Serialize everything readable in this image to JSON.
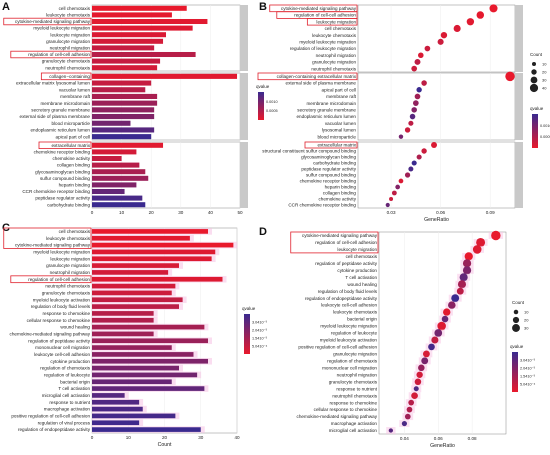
{
  "panel_labels": [
    "A",
    "B",
    "C",
    "D"
  ],
  "colors": {
    "highlight_box": "#e0202c",
    "facet_strip": "#c9c9c9",
    "panel_bg": "#ffffff",
    "grid": "#eeeeee",
    "qvalue_low": "#e8192c",
    "qvalue_high": "#3a2a8f",
    "halo": "#f7c6e6"
  },
  "chart_data": [
    {
      "id": "A",
      "type": "bar",
      "orientation": "horizontal",
      "xlabel": "",
      "ylabel": "",
      "xticks": [
        0,
        10,
        20,
        30,
        40,
        50
      ],
      "xlim": [
        0,
        50
      ],
      "legend": {
        "title": "qvalue",
        "ticks": [
          "0.0010",
          "0.0005"
        ]
      },
      "facets": [
        {
          "name": "BP",
          "categories": [
            "cell chemotaxis",
            "leukocyte chemotaxis",
            "cytokine-mediated signaling pathway",
            "myeloid leukocyte migration",
            "leukocyte migration",
            "granulocyte migration",
            "neutrophil migration",
            "regulation of cell-cell adhesion",
            "granulocyte chemotaxis",
            "neutrophil chemotaxis"
          ],
          "values": [
            32,
            27,
            39,
            34,
            25,
            24,
            21,
            35,
            23,
            22
          ],
          "qvalue": [
            5e-05,
            8e-05,
            0.0001,
            0.00012,
            0.00015,
            0.0002,
            0.0003,
            0.0004,
            0.0003,
            0.0002
          ],
          "highlighted": [
            "cytokine-mediated signaling pathway",
            "regulation of cell-cell adhesion"
          ]
        },
        {
          "name": "CC",
          "categories": [
            "collagen−containing",
            "extracellular matrix lysosomal lumen",
            "vacuolar lumen",
            "membrane raft",
            "membrane microdomain",
            "secretory granule membrane",
            "external side of plasma membrane",
            "blood microparticle",
            "endoplasmic reticulum lumen",
            "apical part of cell"
          ],
          "values": [
            49,
            20,
            18,
            22,
            22,
            21,
            21,
            13,
            21,
            20
          ],
          "qvalue": [
            0.0001,
            0.0003,
            0.0004,
            0.0005,
            0.0006,
            0.0007,
            0.0008,
            0.0009,
            0.0011,
            0.0013
          ],
          "highlighted": [
            "collagen−containing"
          ]
        },
        {
          "name": "MF",
          "categories": [
            "extracellular matrix",
            "chemokine receptor binding",
            "chemokine activity",
            "collagen binding",
            "glycosaminoglycan binding",
            "sulfur compound binding",
            "heparin binding",
            "CCR chemokine receptor binding",
            "peptidase regulator activity",
            "carbohydrate binding"
          ],
          "values": [
            24,
            15,
            10,
            16,
            18,
            19,
            15,
            11,
            17,
            18
          ],
          "qvalue": [
            0.0001,
            0.0002,
            0.0003,
            0.0004,
            0.0005,
            0.0006,
            0.0008,
            0.001,
            0.0012,
            0.0013
          ],
          "highlighted": [
            "extracellular matrix"
          ]
        }
      ]
    },
    {
      "id": "B",
      "type": "scatter",
      "xlabel": "GeneRatio",
      "xticks": [
        "0.03",
        "0.06",
        "0.09"
      ],
      "xlim": [
        0.01,
        0.105
      ],
      "legend": {
        "size_title": "Count",
        "sizes": [
          10,
          20,
          30,
          40
        ],
        "color_title": "qvalue",
        "color_ticks": [
          "0.0010",
          "0.0005"
        ]
      },
      "facets": [
        {
          "name": "BP",
          "categories": [
            "cytokine-mediated signaling pathway",
            "regulation of cell-cell adhesion",
            "leukocyte migration",
            "cell chemotaxis",
            "leukocyte chemotaxis",
            "myeloid leukocyte migration",
            "regulation of leukocyte migration",
            "neutrophil migration",
            "granulocyte migration",
            "neutrophil chemotaxis"
          ],
          "x": [
            0.092,
            0.084,
            0.078,
            0.07,
            0.062,
            0.06,
            0.052,
            0.048,
            0.046,
            0.044
          ],
          "count": [
            39,
            35,
            34,
            32,
            27,
            25,
            22,
            21,
            24,
            22
          ],
          "qvalue": [
            0.0001,
            0.00012,
            0.00015,
            0.0002,
            0.0002,
            0.0003,
            0.0003,
            0.0002,
            0.0004,
            0.0003
          ],
          "highlighted": [
            "cytokine-mediated signaling pathway",
            "regulation of cell-cell adhesion",
            "leukocyte migration"
          ]
        },
        {
          "name": "CC",
          "categories": [
            "collagen-containing extracellular matrix",
            "external side of plasma membrane",
            "apical part of cell",
            "membrane raft",
            "membrane microdomain",
            "secretory granule membrane",
            "endoplasmic reticulum lumen",
            "vacuolar lumen",
            "lysosomal lumen",
            "blood microparticle"
          ],
          "x": [
            0.102,
            0.05,
            0.047,
            0.046,
            0.045,
            0.044,
            0.043,
            0.042,
            0.04,
            0.036
          ],
          "count": [
            49,
            21,
            20,
            22,
            22,
            21,
            21,
            18,
            20,
            13
          ],
          "qvalue": [
            0.0001,
            0.0004,
            0.0013,
            0.0006,
            0.0007,
            0.0008,
            0.0011,
            0.0004,
            0.0003,
            0.0009
          ],
          "highlighted": [
            "collagen-containing extracellular matrix"
          ]
        },
        {
          "name": "MF",
          "categories": [
            "extracellular matrix",
            "structural constituent sulfur compound binding",
            "glycosaminoglycan binding",
            "carbohydrate binding",
            "peptidase regulator activity",
            "sulfur compound binding",
            "chemokine receptor binding",
            "heparin binding",
            "collagen binding",
            "chemokine activity",
            "CCR chemokine receptor binding"
          ],
          "x": [
            0.056,
            0.05,
            0.047,
            0.044,
            0.042,
            0.04,
            0.036,
            0.034,
            0.032,
            0.03,
            0.028
          ],
          "count": [
            24,
            20,
            18,
            18,
            17,
            19,
            15,
            15,
            16,
            10,
            11
          ],
          "qvalue": [
            0.0002,
            0.0003,
            0.0005,
            0.0013,
            0.0012,
            0.0006,
            0.0002,
            0.0008,
            0.0004,
            0.0003,
            0.001
          ],
          "highlighted": [
            "extracellular matrix"
          ]
        }
      ]
    },
    {
      "id": "C",
      "type": "bar",
      "orientation": "horizontal",
      "xlabel": "Count",
      "xticks": [
        0,
        10,
        20,
        30,
        40
      ],
      "xlim": [
        0,
        40
      ],
      "legend": {
        "title": "qvalue",
        "ticks": [
          "3.0410⁻³",
          "2.0410⁻³",
          "1.5410⁻³",
          "5.0410⁻⁴"
        ]
      },
      "categories": [
        "cell chemotaxis",
        "leukocyte chemotaxis",
        "cytokine-mediated signaling pathway",
        "myeloid leukocyte migration",
        "leukocyte migration",
        "granulocyte migration",
        "neutrophil migration",
        "regulation of cell-cell adhesion",
        "neutrophil chemotaxis",
        "granulocyte chemotaxis",
        "myeloid leukocyte activation",
        "regulation of body fluid levels",
        "response to chemokine",
        "cellular response to chemokine",
        "wound healing",
        "chemokine-mediated signaling pathway",
        "regulation of peptidase activity",
        "mononuclear cell migration",
        "leukocyte cell-cell adhesion",
        "cytokine production",
        "regulation of chemotaxis",
        "regulation of leukocyte",
        "bacterial origin",
        "T cell activation",
        "microglial cell activation",
        "response to nutrient",
        "macrophage activation",
        "positive regulation of cell-cell adhesion",
        "regulation of viral process",
        "regulation of endopeptidase activity"
      ],
      "values": [
        32,
        27,
        39,
        34,
        33,
        24,
        21,
        36,
        23,
        22,
        25,
        24,
        17,
        17,
        31,
        17,
        32,
        22,
        28,
        32,
        24,
        29,
        22,
        31,
        9,
        13,
        14,
        23,
        13,
        30
      ],
      "qvalue": [
        0.0001,
        0.0002,
        0.0001,
        0.0003,
        0.0003,
        0.0004,
        0.0005,
        0.0003,
        0.0005,
        0.0006,
        0.0008,
        0.0009,
        0.001,
        0.0011,
        0.0013,
        0.0014,
        0.0015,
        0.0016,
        0.0018,
        0.002,
        0.0021,
        0.0022,
        0.0024,
        0.0025,
        0.0027,
        0.0028,
        0.0029,
        0.003,
        0.0031,
        0.0032
      ],
      "highlighted": [
        "cell chemotaxis",
        "leukocyte chemotaxis",
        "cytokine-mediated signaling pathway",
        "regulation of cell-cell adhesion"
      ]
    },
    {
      "id": "D",
      "type": "scatter",
      "xlabel": "GeneRatio",
      "xticks": [
        "0.04",
        "0.06",
        "0.08"
      ],
      "xlim": [
        0.025,
        0.1
      ],
      "legend": {
        "size_title": "Count",
        "sizes": [
          10,
          20,
          30
        ],
        "color_title": "qvalue",
        "color_ticks": [
          "3.0410⁻³",
          "2.0410⁻³",
          "1.5410⁻³",
          "5.0410⁻⁴"
        ]
      },
      "categories": [
        "cytokine-mediated signaling pathway",
        "regulation of cell-cell adhesion",
        "leukocyte migration",
        "cell chemotaxis",
        "regulation of peptidase activity",
        "cytokine production",
        "T cell activation",
        "wound healing",
        "regulation of body fluid levels",
        "regulation of endopeptidase activity",
        "leukocyte cell-cell adhesion",
        "leukocyte chemotaxis",
        "bacterial origin",
        "myeloid leukocyte migration",
        "regulation of leukocyte",
        "myeloid leukocyte activation",
        "positive regulation of cell-cell adhesion",
        "granulocyte migration",
        "regulation of chemotaxis",
        "mononuclear cell migration",
        "neutrophil migration",
        "granulocyte chemotaxis",
        "response to nutrient",
        "neutrophil chemotaxis",
        "response to chemokine",
        "cellular response to chemokine",
        "chemokine-mediated signaling pathway",
        "macrophage activation",
        "microglial cell activation"
      ],
      "x": [
        0.094,
        0.085,
        0.083,
        0.078,
        0.077,
        0.077,
        0.075,
        0.074,
        0.073,
        0.07,
        0.068,
        0.065,
        0.064,
        0.062,
        0.06,
        0.058,
        0.056,
        0.053,
        0.052,
        0.05,
        0.049,
        0.048,
        0.047,
        0.046,
        0.044,
        0.043,
        0.042,
        0.04,
        0.032
      ],
      "count": [
        39,
        36,
        34,
        32,
        32,
        32,
        31,
        31,
        24,
        30,
        28,
        27,
        22,
        34,
        29,
        25,
        23,
        24,
        24,
        22,
        21,
        22,
        13,
        23,
        17,
        17,
        17,
        14,
        9
      ],
      "qvalue": [
        0.0001,
        0.0003,
        0.0003,
        0.0001,
        0.0015,
        0.002,
        0.0025,
        0.0013,
        0.0009,
        0.0032,
        0.0018,
        0.0002,
        0.0024,
        0.0003,
        0.0022,
        0.0008,
        0.003,
        0.0004,
        0.0021,
        0.0016,
        0.0005,
        0.0006,
        0.0028,
        0.0005,
        0.001,
        0.0011,
        0.0014,
        0.0029,
        0.0027
      ],
      "highlighted": [
        "cytokine-mediated signaling pathway",
        "regulation of cell-cell adhesion",
        "leukocyte migration"
      ]
    }
  ]
}
